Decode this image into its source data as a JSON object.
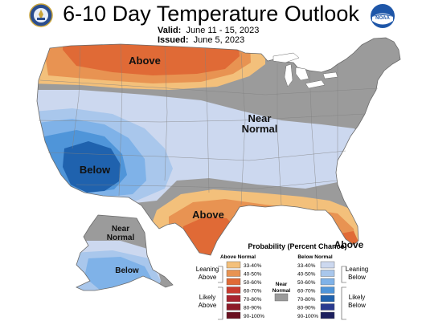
{
  "title": "6-10 Day Temperature Outlook",
  "valid_label": "Valid:",
  "valid_value": "June 11 - 15, 2023",
  "issued_label": "Issued:",
  "issued_value": "June 5, 2023",
  "logos": {
    "left": "doc-seal-icon",
    "right": "noaa-logo-icon",
    "noaa_text": "NOAA"
  },
  "region_labels": {
    "above_north": "Above",
    "near_normal_line1": "Near",
    "near_normal_line2": "Normal",
    "below_southwest": "Below",
    "above_texas": "Above",
    "above_florida": "Above",
    "alaska_near_line1": "Near",
    "alaska_near_line2": "Normal",
    "alaska_below": "Below"
  },
  "legend": {
    "title": "Probability (Percent Chance)",
    "above_header": "Above Normal",
    "below_header": "Below Normal",
    "near_header_line1": "Near",
    "near_header_line2": "Normal",
    "leaning_above_1": "Leaning",
    "leaning_above_2": "Above",
    "likely_above_1": "Likely",
    "likely_above_2": "Above",
    "leaning_below_1": "Leaning",
    "leaning_below_2": "Below",
    "likely_below_1": "Likely",
    "likely_below_2": "Below",
    "ranges": [
      "33-40%",
      "40-50%",
      "50-60%",
      "60-70%",
      "70-80%",
      "80-90%",
      "90-100%"
    ],
    "above_colors": [
      "#f3c07b",
      "#e89352",
      "#e06a36",
      "#c83a2e",
      "#a8232e",
      "#8c1a28",
      "#6a1020"
    ],
    "below_colors": [
      "#ccd8ef",
      "#a9c7ec",
      "#7fb2e8",
      "#4f95d9",
      "#1f62ae",
      "#2a3b8f",
      "#1d1f5e"
    ],
    "near_color": "#9b9b9b"
  },
  "map_colors": {
    "land_near": "#9b9b9b",
    "below_33": "#ccd8ef",
    "below_40": "#a9c7ec",
    "below_50": "#7fb2e8",
    "below_60": "#4f95d9",
    "below_70": "#1f62ae",
    "above_33": "#f3c07b",
    "above_40": "#e89352",
    "above_50": "#e06a36"
  }
}
